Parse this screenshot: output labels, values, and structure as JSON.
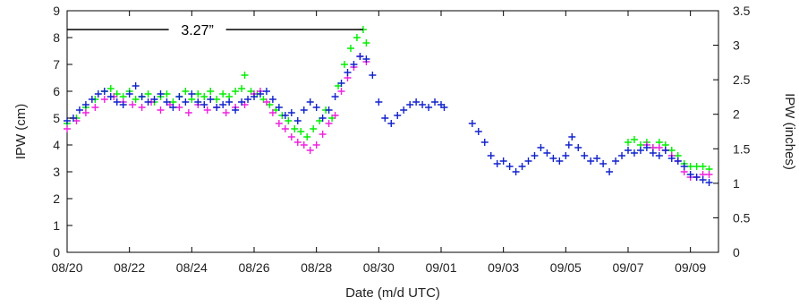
{
  "chart_data": {
    "type": "scatter",
    "title": "",
    "xlabel": "Date (m/d UTC)",
    "ylabel_left": "IPW (cm)",
    "ylabel_right": "IPW (inches)",
    "x_unit": "day index from 08/20",
    "xlim": [
      0,
      20.9
    ],
    "ylim_left": [
      0,
      9
    ],
    "ylim_right": [
      0,
      3.5
    ],
    "x_tick_labels": [
      "08/20",
      "08/22",
      "08/24",
      "08/26",
      "08/28",
      "08/30",
      "09/01",
      "09/03",
      "09/05",
      "09/07",
      "09/09"
    ],
    "x_tick_values": [
      0,
      2,
      4,
      6,
      8,
      10,
      12,
      14,
      16,
      18,
      20
    ],
    "y_left_ticks": [
      "0",
      "1",
      "2",
      "3",
      "4",
      "5",
      "6",
      "7",
      "8",
      "9"
    ],
    "y_right_ticks": [
      "0",
      "0.5",
      "1",
      "1.5",
      "2",
      "2.5",
      "3",
      "3.5"
    ],
    "annotation": {
      "text": "3.27”",
      "y_value": 8.3,
      "x_from": 0,
      "x_to": 9.5
    },
    "grid": false,
    "legend": "none",
    "series": [
      {
        "color": "#00ee00",
        "marker": "+",
        "points": [
          [
            0,
            4.8
          ],
          [
            0.3,
            5.0
          ],
          [
            0.6,
            5.4
          ],
          [
            0.9,
            5.7
          ],
          [
            1.2,
            6.0
          ],
          [
            1.4,
            6.1
          ],
          [
            1.6,
            5.9
          ],
          [
            1.8,
            5.8
          ],
          [
            2.0,
            6.0
          ],
          [
            2.2,
            5.7
          ],
          [
            2.4,
            5.8
          ],
          [
            2.6,
            5.9
          ],
          [
            2.8,
            5.6
          ],
          [
            3.0,
            5.8
          ],
          [
            3.2,
            5.9
          ],
          [
            3.4,
            5.6
          ],
          [
            3.6,
            5.8
          ],
          [
            3.8,
            6.0
          ],
          [
            4.0,
            5.7
          ],
          [
            4.2,
            5.9
          ],
          [
            4.4,
            5.8
          ],
          [
            4.6,
            6.0
          ],
          [
            4.8,
            5.7
          ],
          [
            5.0,
            5.9
          ],
          [
            5.2,
            5.8
          ],
          [
            5.4,
            6.0
          ],
          [
            5.6,
            6.1
          ],
          [
            5.7,
            6.6
          ],
          [
            5.9,
            6.0
          ],
          [
            6.1,
            5.9
          ],
          [
            6.3,
            5.7
          ],
          [
            6.5,
            5.5
          ],
          [
            6.7,
            5.3
          ],
          [
            6.9,
            5.1
          ],
          [
            7.1,
            4.9
          ],
          [
            7.3,
            4.6
          ],
          [
            7.5,
            4.5
          ],
          [
            7.7,
            4.3
          ],
          [
            7.9,
            4.6
          ],
          [
            8.1,
            4.9
          ],
          [
            8.3,
            5.3
          ],
          [
            8.5,
            5.0
          ],
          [
            8.7,
            6.2
          ],
          [
            8.9,
            7.0
          ],
          [
            9.1,
            7.6
          ],
          [
            9.3,
            8.0
          ],
          [
            9.5,
            8.3
          ],
          [
            9.6,
            7.8
          ],
          [
            18.0,
            4.1
          ],
          [
            18.2,
            4.2
          ],
          [
            18.4,
            4.0
          ],
          [
            18.6,
            4.1
          ],
          [
            18.8,
            3.9
          ],
          [
            19.0,
            4.1
          ],
          [
            19.2,
            4.0
          ],
          [
            19.4,
            3.8
          ],
          [
            19.6,
            3.6
          ],
          [
            19.8,
            3.3
          ],
          [
            20.0,
            3.2
          ],
          [
            20.2,
            3.2
          ],
          [
            20.4,
            3.2
          ],
          [
            20.6,
            3.1
          ]
        ]
      },
      {
        "color": "#ee22dd",
        "marker": "+",
        "points": [
          [
            0,
            4.6
          ],
          [
            0.3,
            4.9
          ],
          [
            0.6,
            5.2
          ],
          [
            0.9,
            5.4
          ],
          [
            1.2,
            5.7
          ],
          [
            1.5,
            5.8
          ],
          [
            1.8,
            5.6
          ],
          [
            2.1,
            5.5
          ],
          [
            2.4,
            5.4
          ],
          [
            2.7,
            5.6
          ],
          [
            3.0,
            5.3
          ],
          [
            3.3,
            5.5
          ],
          [
            3.6,
            5.4
          ],
          [
            3.9,
            5.2
          ],
          [
            4.2,
            5.5
          ],
          [
            4.5,
            5.3
          ],
          [
            4.8,
            5.4
          ],
          [
            5.1,
            5.2
          ],
          [
            5.4,
            5.4
          ],
          [
            5.7,
            5.5
          ],
          [
            6.0,
            5.9
          ],
          [
            6.2,
            6.0
          ],
          [
            6.4,
            5.6
          ],
          [
            6.6,
            5.2
          ],
          [
            6.8,
            4.8
          ],
          [
            7.0,
            4.6
          ],
          [
            7.2,
            4.3
          ],
          [
            7.4,
            4.1
          ],
          [
            7.6,
            4.0
          ],
          [
            7.8,
            3.8
          ],
          [
            8.0,
            4.0
          ],
          [
            8.2,
            4.4
          ],
          [
            8.4,
            4.8
          ],
          [
            8.6,
            5.1
          ],
          [
            8.8,
            6.0
          ],
          [
            9.0,
            6.5
          ],
          [
            9.2,
            6.9
          ],
          [
            9.4,
            7.3
          ],
          [
            9.6,
            7.1
          ],
          [
            18.6,
            4.0
          ],
          [
            18.8,
            3.9
          ],
          [
            19.0,
            3.9
          ],
          [
            19.2,
            3.8
          ],
          [
            19.4,
            3.6
          ],
          [
            19.6,
            3.4
          ],
          [
            19.8,
            3.0
          ],
          [
            20.0,
            2.8
          ],
          [
            20.2,
            2.8
          ],
          [
            20.4,
            2.9
          ],
          [
            20.6,
            2.9
          ]
        ]
      },
      {
        "color": "#1122cc",
        "marker": "+",
        "points": [
          [
            0,
            4.9
          ],
          [
            0.2,
            5.0
          ],
          [
            0.4,
            5.3
          ],
          [
            0.6,
            5.5
          ],
          [
            0.8,
            5.7
          ],
          [
            1.0,
            5.9
          ],
          [
            1.2,
            6.0
          ],
          [
            1.4,
            5.8
          ],
          [
            1.6,
            5.6
          ],
          [
            1.8,
            5.5
          ],
          [
            2.0,
            5.9
          ],
          [
            2.2,
            6.2
          ],
          [
            2.4,
            5.8
          ],
          [
            2.6,
            5.6
          ],
          [
            2.8,
            5.7
          ],
          [
            3.0,
            5.9
          ],
          [
            3.2,
            5.6
          ],
          [
            3.4,
            5.4
          ],
          [
            3.6,
            5.8
          ],
          [
            3.8,
            5.6
          ],
          [
            4.0,
            5.9
          ],
          [
            4.2,
            5.6
          ],
          [
            4.4,
            5.5
          ],
          [
            4.6,
            5.7
          ],
          [
            4.8,
            5.4
          ],
          [
            5.0,
            5.5
          ],
          [
            5.2,
            5.6
          ],
          [
            5.4,
            5.3
          ],
          [
            5.6,
            5.6
          ],
          [
            5.8,
            5.7
          ],
          [
            6.0,
            5.8
          ],
          [
            6.2,
            5.9
          ],
          [
            6.4,
            6.0
          ],
          [
            6.6,
            5.7
          ],
          [
            6.8,
            5.4
          ],
          [
            7.0,
            5.1
          ],
          [
            7.2,
            5.2
          ],
          [
            7.4,
            4.9
          ],
          [
            7.6,
            5.3
          ],
          [
            7.8,
            5.6
          ],
          [
            8.0,
            5.4
          ],
          [
            8.2,
            5.0
          ],
          [
            8.4,
            5.3
          ],
          [
            8.6,
            5.8
          ],
          [
            8.8,
            6.3
          ],
          [
            9.0,
            6.7
          ],
          [
            9.2,
            7.0
          ],
          [
            9.4,
            7.3
          ],
          [
            9.6,
            7.2
          ],
          [
            9.8,
            6.6
          ],
          [
            10.0,
            5.6
          ],
          [
            10.2,
            5.0
          ],
          [
            10.4,
            4.8
          ],
          [
            10.6,
            5.1
          ],
          [
            10.8,
            5.3
          ],
          [
            11.0,
            5.5
          ],
          [
            11.2,
            5.6
          ],
          [
            11.4,
            5.5
          ],
          [
            11.6,
            5.4
          ],
          [
            11.8,
            5.6
          ],
          [
            12.0,
            5.5
          ],
          [
            12.1,
            5.4
          ],
          [
            13.0,
            4.8
          ],
          [
            13.2,
            4.5
          ],
          [
            13.4,
            4.1
          ],
          [
            13.6,
            3.6
          ],
          [
            13.8,
            3.3
          ],
          [
            14.0,
            3.4
          ],
          [
            14.2,
            3.2
          ],
          [
            14.4,
            3.0
          ],
          [
            14.6,
            3.2
          ],
          [
            14.8,
            3.4
          ],
          [
            15.0,
            3.6
          ],
          [
            15.2,
            3.9
          ],
          [
            15.4,
            3.7
          ],
          [
            15.6,
            3.5
          ],
          [
            15.8,
            3.4
          ],
          [
            16.0,
            3.6
          ],
          [
            16.1,
            4.0
          ],
          [
            16.2,
            4.3
          ],
          [
            16.4,
            3.9
          ],
          [
            16.6,
            3.6
          ],
          [
            16.8,
            3.4
          ],
          [
            17.0,
            3.5
          ],
          [
            17.2,
            3.3
          ],
          [
            17.4,
            3.0
          ],
          [
            17.6,
            3.4
          ],
          [
            17.8,
            3.6
          ],
          [
            18.0,
            3.8
          ],
          [
            18.2,
            3.7
          ],
          [
            18.4,
            3.8
          ],
          [
            18.6,
            3.9
          ],
          [
            18.8,
            3.7
          ],
          [
            19.0,
            3.6
          ],
          [
            19.2,
            3.8
          ],
          [
            19.4,
            3.5
          ],
          [
            19.6,
            3.4
          ],
          [
            19.8,
            3.2
          ],
          [
            20.0,
            2.9
          ],
          [
            20.2,
            2.8
          ],
          [
            20.4,
            2.7
          ],
          [
            20.6,
            2.6
          ]
        ]
      }
    ]
  }
}
